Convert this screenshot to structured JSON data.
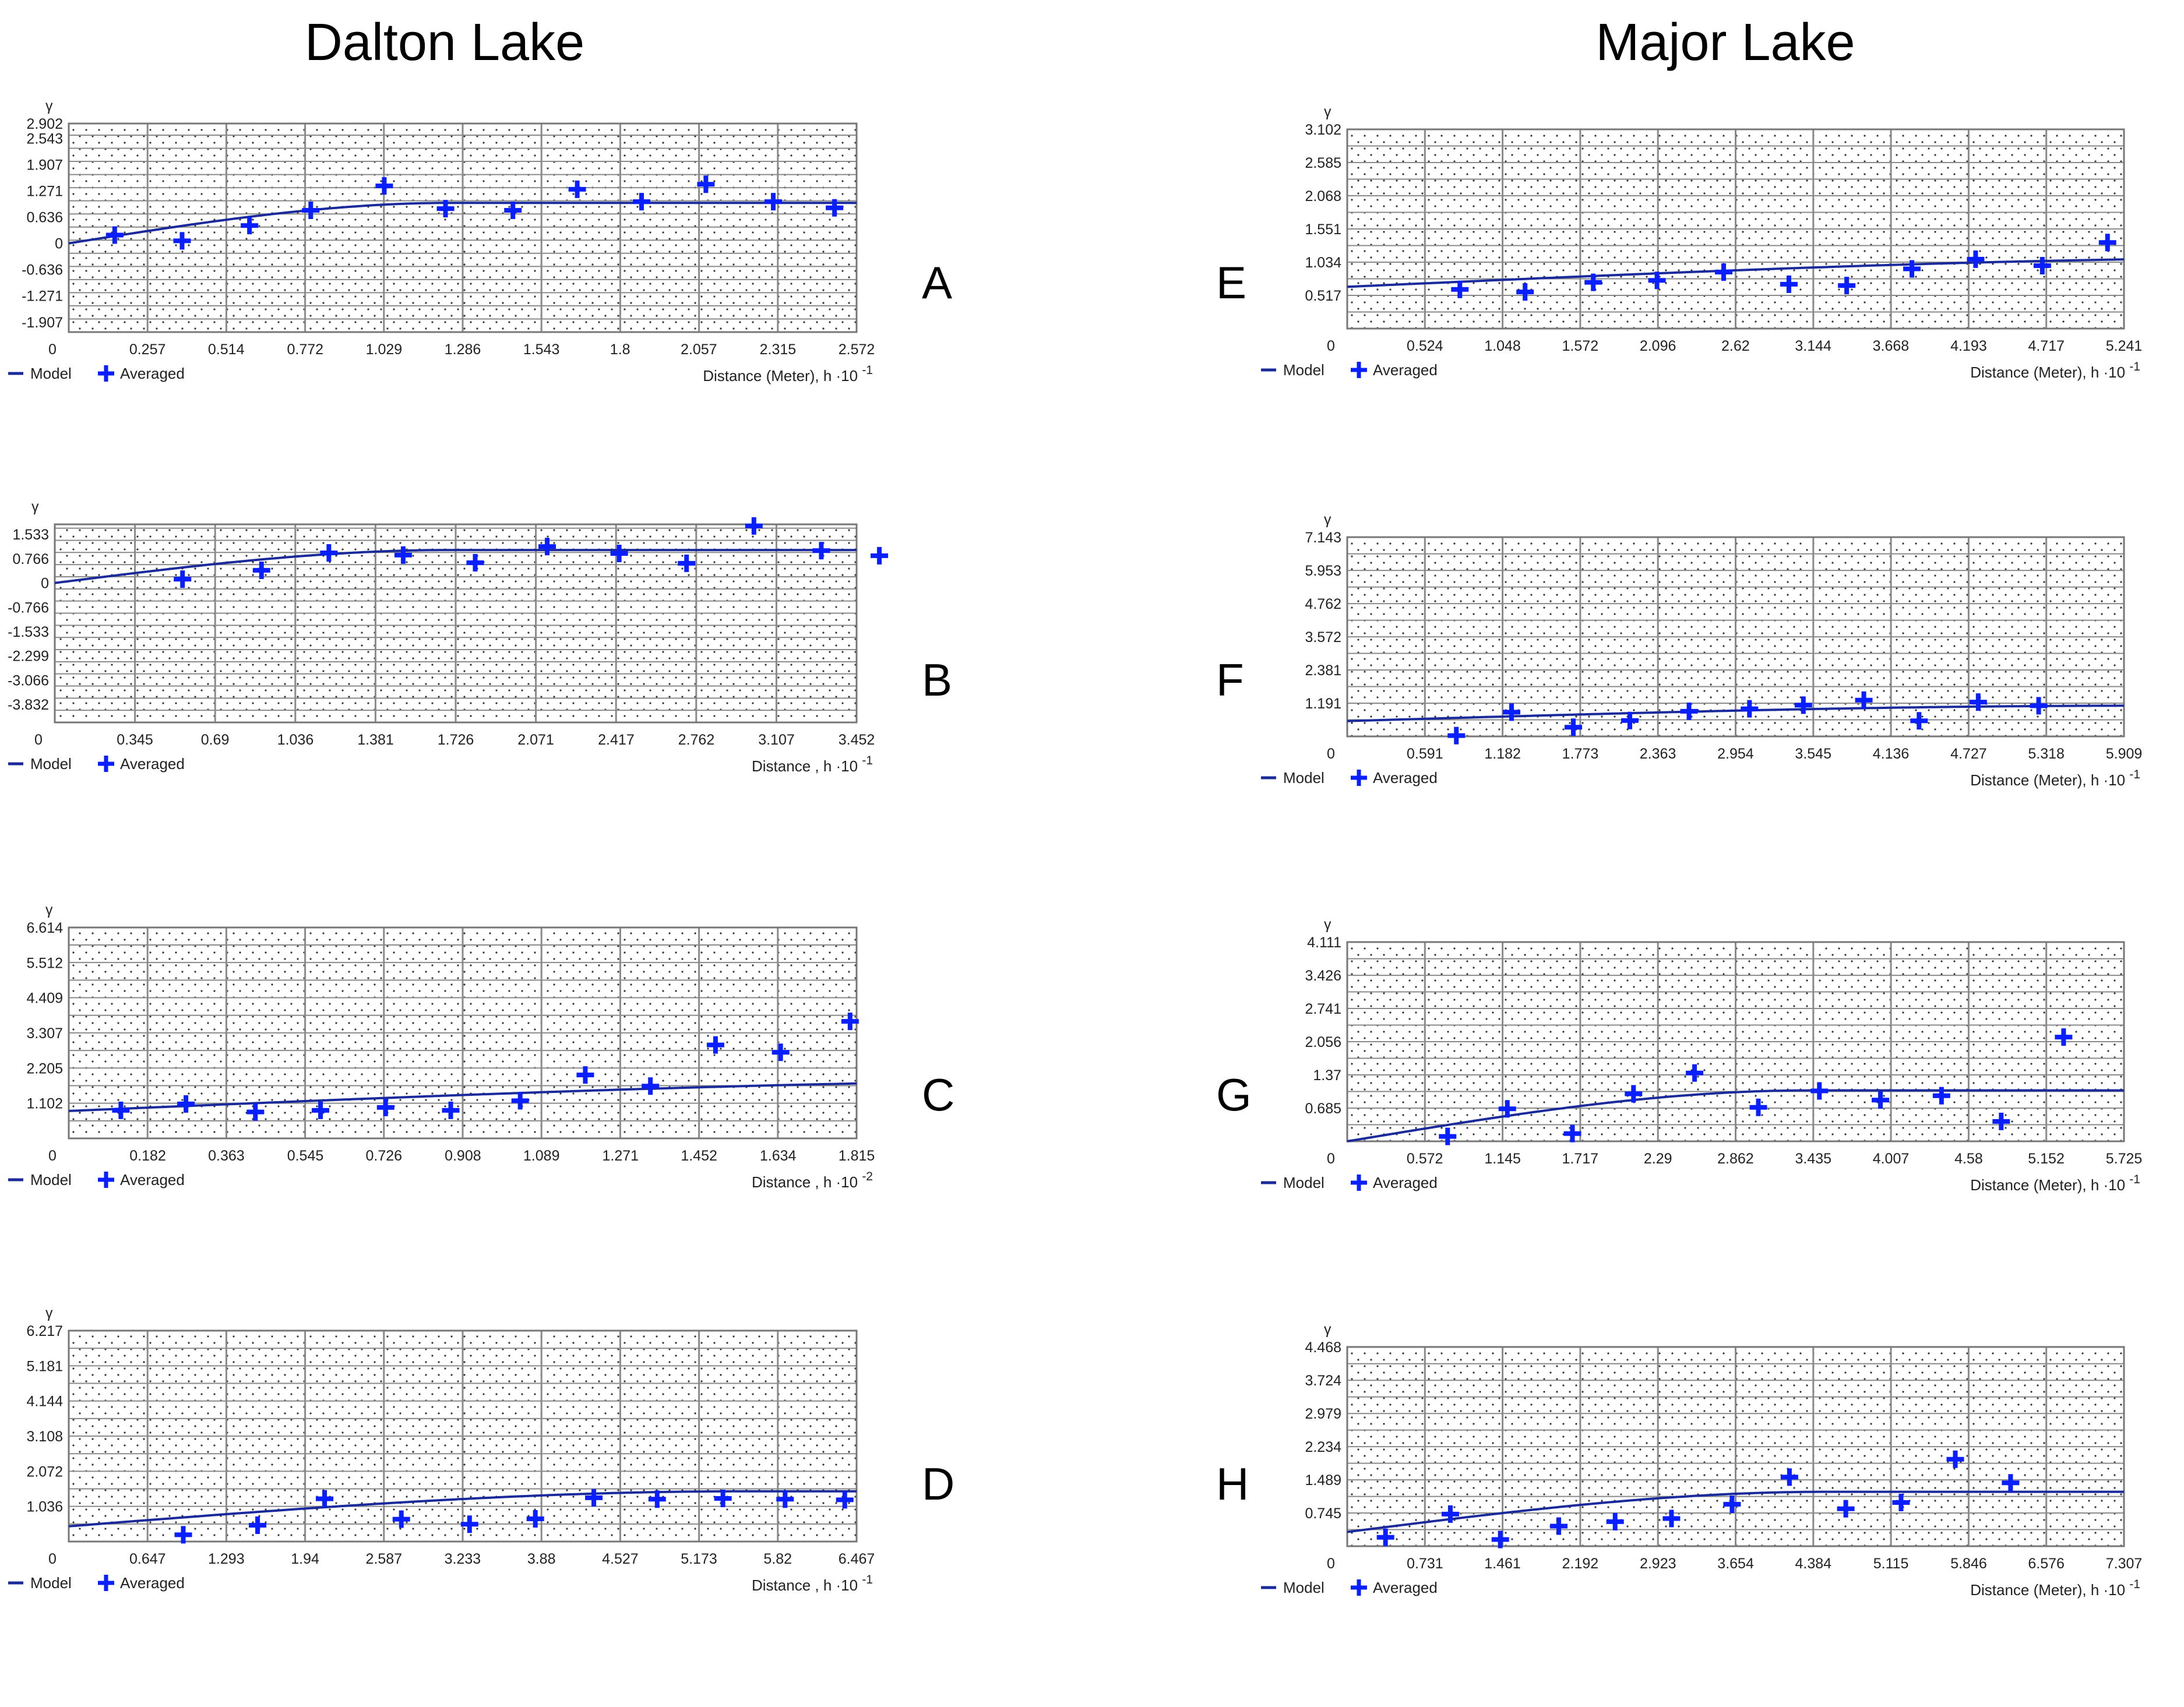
{
  "headers": {
    "left": "Dalton Lake",
    "right": "Major Lake"
  },
  "chart_data": [
    {
      "id": "A",
      "type": "scatter",
      "letter": "A",
      "ylabel": "γ",
      "xlabel": "Distance (Meter), h ·10",
      "xexp": "-1",
      "legend": {
        "model": "Model",
        "averaged": "Averaged"
      },
      "yticks": [
        2.902,
        2.543,
        1.907,
        1.271,
        0.636,
        0,
        -0.636,
        -1.271,
        -1.907
      ],
      "ylim": [
        -2.15,
        2.902
      ],
      "xlim": [
        0,
        2.572
      ],
      "xticks": [
        0,
        0.257,
        0.514,
        0.772,
        1.029,
        1.286,
        1.543,
        1.8,
        2.057,
        2.315,
        2.572
      ],
      "points": [
        [
          0.15,
          0.2
        ],
        [
          0.37,
          0.06
        ],
        [
          0.59,
          0.43
        ],
        [
          0.79,
          0.8
        ],
        [
          1.03,
          1.39
        ],
        [
          1.23,
          0.84
        ],
        [
          1.45,
          0.8
        ],
        [
          1.66,
          1.31
        ],
        [
          1.87,
          1.01
        ],
        [
          2.08,
          1.43
        ],
        [
          2.3,
          1.01
        ],
        [
          2.5,
          0.86
        ]
      ],
      "model": {
        "sill": 0.98,
        "range": 1.25,
        "nugget": 0
      }
    },
    {
      "id": "B",
      "type": "scatter",
      "letter": "B",
      "ylabel": "γ",
      "xlabel": "Distance , h ·10",
      "xexp": "-1",
      "legend": {
        "model": "Model",
        "averaged": "Averaged"
      },
      "yticks": [
        1.533,
        0.766,
        0,
        -0.766,
        -1.533,
        -2.299,
        -3.066,
        -3.832
      ],
      "ylim": [
        -4.4,
        1.85
      ],
      "xlim": [
        0,
        3.452
      ],
      "xticks": [
        0,
        0.345,
        0.69,
        1.036,
        1.381,
        1.726,
        2.071,
        2.417,
        2.762,
        3.107,
        3.452
      ],
      "points": [
        [
          0.55,
          0.12
        ],
        [
          0.89,
          0.4
        ],
        [
          1.18,
          0.95
        ],
        [
          1.5,
          0.88
        ],
        [
          1.81,
          0.64
        ],
        [
          2.12,
          1.15
        ],
        [
          2.43,
          0.93
        ],
        [
          2.72,
          0.62
        ],
        [
          3.01,
          1.8
        ],
        [
          3.3,
          1.02
        ],
        [
          3.55,
          0.86
        ]
      ],
      "model": {
        "sill": 1.04,
        "range": 1.7,
        "nugget": 0
      }
    },
    {
      "id": "C",
      "type": "scatter",
      "letter": "C",
      "ylabel": "γ",
      "xlabel": "Distance , h ·10",
      "xexp": "-2",
      "legend": {
        "model": "Model",
        "averaged": "Averaged"
      },
      "yticks": [
        6.614,
        5.512,
        4.409,
        3.307,
        2.205,
        1.102
      ],
      "ylim": [
        0,
        6.614
      ],
      "xlim": [
        0,
        1.815
      ],
      "xticks": [
        0,
        0.182,
        0.363,
        0.545,
        0.726,
        0.908,
        1.089,
        1.271,
        1.452,
        1.634,
        1.815
      ],
      "points": [
        [
          0.12,
          0.88
        ],
        [
          0.27,
          1.08
        ],
        [
          0.43,
          0.83
        ],
        [
          0.58,
          0.88
        ],
        [
          0.73,
          0.97
        ],
        [
          0.88,
          0.88
        ],
        [
          1.04,
          1.18
        ],
        [
          1.19,
          1.99
        ],
        [
          1.34,
          1.64
        ],
        [
          1.49,
          2.93
        ],
        [
          1.64,
          2.7
        ],
        [
          1.8,
          3.67
        ]
      ],
      "model": {
        "sill": 0.96,
        "range": 2.5,
        "nugget": 0.86
      }
    },
    {
      "id": "D",
      "type": "scatter",
      "letter": "D",
      "ylabel": "γ",
      "xlabel": "Distance , h ·10",
      "xexp": "-1",
      "legend": {
        "model": "Model",
        "averaged": "Averaged"
      },
      "yticks": [
        6.217,
        5.181,
        4.144,
        3.108,
        2.072,
        1.036
      ],
      "ylim": [
        0,
        6.217
      ],
      "xlim": [
        0,
        6.467
      ],
      "xticks": [
        0,
        0.647,
        1.293,
        1.94,
        2.587,
        3.233,
        3.88,
        4.527,
        5.173,
        5.82,
        6.467
      ],
      "points": [
        [
          0.94,
          0.2
        ],
        [
          1.55,
          0.48
        ],
        [
          2.1,
          1.26
        ],
        [
          2.73,
          0.66
        ],
        [
          3.29,
          0.51
        ],
        [
          3.83,
          0.67
        ],
        [
          4.31,
          1.29
        ],
        [
          4.83,
          1.25
        ],
        [
          5.37,
          1.27
        ],
        [
          5.88,
          1.25
        ],
        [
          6.37,
          1.23
        ]
      ],
      "model": {
        "sill": 1.03,
        "range": 5.5,
        "nugget": 0.45
      }
    },
    {
      "id": "E",
      "type": "scatter",
      "letter": "E",
      "ylabel": "γ",
      "xlabel": "Distance (Meter), h ·10",
      "xexp": "-1",
      "legend": {
        "model": "Model",
        "averaged": "Averaged"
      },
      "yticks": [
        3.102,
        2.585,
        2.068,
        1.551,
        1.034,
        0.517
      ],
      "ylim": [
        0,
        3.102
      ],
      "xlim": [
        0,
        5.241
      ],
      "xticks": [
        0,
        0.524,
        1.048,
        1.572,
        2.096,
        2.62,
        3.144,
        3.668,
        4.193,
        4.717,
        5.241
      ],
      "points": [
        [
          0.76,
          0.61
        ],
        [
          1.2,
          0.57
        ],
        [
          1.66,
          0.72
        ],
        [
          2.09,
          0.75
        ],
        [
          2.54,
          0.88
        ],
        [
          2.98,
          0.69
        ],
        [
          3.37,
          0.67
        ],
        [
          3.81,
          0.93
        ],
        [
          4.24,
          1.08
        ],
        [
          4.69,
          0.98
        ],
        [
          5.13,
          1.34
        ]
      ],
      "model": {
        "sill": 0.45,
        "range": 6.5,
        "nugget": 0.65
      }
    },
    {
      "id": "F",
      "type": "scatter",
      "letter": "F",
      "ylabel": "γ",
      "xlabel": "Distance (Meter), h ·10",
      "xexp": "-1",
      "legend": {
        "model": "Model",
        "averaged": "Averaged"
      },
      "yticks": [
        7.143,
        5.953,
        4.762,
        3.572,
        2.381,
        1.191
      ],
      "ylim": [
        0,
        7.143
      ],
      "xlim": [
        0,
        5.909
      ],
      "xticks": [
        0,
        0.591,
        1.182,
        1.773,
        2.363,
        2.954,
        3.545,
        4.136,
        4.727,
        5.318,
        5.909
      ],
      "points": [
        [
          0.83,
          0.03
        ],
        [
          1.25,
          0.87
        ],
        [
          1.72,
          0.33
        ],
        [
          2.15,
          0.57
        ],
        [
          2.6,
          0.9
        ],
        [
          3.06,
          0.99
        ],
        [
          3.47,
          1.12
        ],
        [
          3.93,
          1.3
        ],
        [
          4.35,
          0.56
        ],
        [
          4.8,
          1.23
        ],
        [
          5.26,
          1.1
        ]
      ],
      "model": {
        "sill": 0.55,
        "range": 6,
        "nugget": 0.55
      }
    },
    {
      "id": "G",
      "type": "scatter",
      "letter": "G",
      "ylabel": "γ",
      "xlabel": "Distance (Meter), h ·10",
      "xexp": "-1",
      "legend": {
        "model": "Model",
        "averaged": "Averaged"
      },
      "yticks": [
        4.111,
        3.426,
        2.741,
        2.056,
        1.37,
        0.685
      ],
      "ylim": [
        0,
        4.111
      ],
      "xlim": [
        0,
        5.725
      ],
      "xticks": [
        0,
        0.572,
        1.145,
        1.717,
        2.29,
        2.862,
        3.435,
        4.007,
        4.58,
        5.152,
        5.725
      ],
      "points": [
        [
          0.74,
          0.1
        ],
        [
          1.18,
          0.67
        ],
        [
          1.66,
          0.16
        ],
        [
          2.11,
          0.98
        ],
        [
          2.56,
          1.41
        ],
        [
          3.03,
          0.7
        ],
        [
          3.48,
          1.04
        ],
        [
          3.93,
          0.85
        ],
        [
          4.38,
          0.94
        ],
        [
          4.82,
          0.41
        ],
        [
          5.28,
          2.15
        ]
      ],
      "model": {
        "sill": 1.05,
        "range": 3.4,
        "nugget": 0
      }
    },
    {
      "id": "H",
      "type": "scatter",
      "letter": "H",
      "ylabel": "γ",
      "xlabel": "Distance (Meter), h ·10",
      "xexp": "-1",
      "legend": {
        "model": "Model",
        "averaged": "Averaged"
      },
      "yticks": [
        4.468,
        3.724,
        2.979,
        2.234,
        1.489,
        0.745
      ],
      "ylim": [
        0,
        4.468
      ],
      "xlim": [
        0,
        7.307
      ],
      "xticks": [
        0,
        0.731,
        1.461,
        2.192,
        2.923,
        3.654,
        4.384,
        5.115,
        5.846,
        6.576,
        7.307
      ],
      "points": [
        [
          0.36,
          0.2
        ],
        [
          0.97,
          0.72
        ],
        [
          1.44,
          0.15
        ],
        [
          1.99,
          0.45
        ],
        [
          2.52,
          0.55
        ],
        [
          3.05,
          0.62
        ],
        [
          3.62,
          0.94
        ],
        [
          4.16,
          1.55
        ],
        [
          4.69,
          0.84
        ],
        [
          5.21,
          0.98
        ],
        [
          5.72,
          1.95
        ],
        [
          6.24,
          1.42
        ]
      ],
      "model": {
        "sill": 0.9,
        "range": 4.5,
        "nugget": 0.32
      }
    }
  ]
}
